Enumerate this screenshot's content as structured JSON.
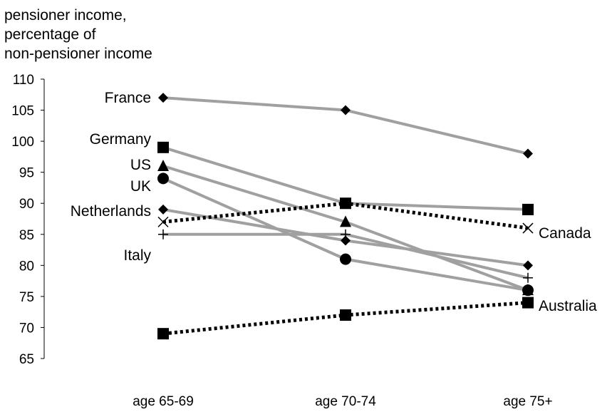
{
  "chart_data": {
    "type": "line",
    "ylabel_lines": [
      "pensioner income,",
      "percentage of",
      "non-pensioner income"
    ],
    "categories": [
      "age 65-69",
      "age 70-74",
      "age 75+"
    ],
    "ylim": [
      65,
      110
    ],
    "yticks": [
      65,
      70,
      75,
      80,
      85,
      90,
      95,
      100,
      105,
      110
    ],
    "grid": false,
    "series": [
      {
        "name": "France",
        "values": [
          107,
          105,
          98
        ],
        "marker": "diamond",
        "line_style": "solid",
        "color": "#a0a0a0"
      },
      {
        "name": "Germany",
        "values": [
          99,
          90,
          89
        ],
        "marker": "square",
        "line_style": "solid",
        "color": "#a0a0a0"
      },
      {
        "name": "US",
        "values": [
          96,
          87,
          76
        ],
        "marker": "triangle",
        "line_style": "solid",
        "color": "#a0a0a0"
      },
      {
        "name": "UK",
        "values": [
          94,
          81,
          76
        ],
        "marker": "circle",
        "line_style": "solid",
        "color": "#a0a0a0"
      },
      {
        "name": "Netherlands",
        "values": [
          89,
          84,
          80
        ],
        "marker": "diamond",
        "line_style": "solid",
        "color": "#a0a0a0"
      },
      {
        "name": "Italy",
        "values": [
          85,
          85,
          78
        ],
        "marker": "plus",
        "line_style": "solid",
        "color": "#a0a0a0"
      },
      {
        "name": "Canada",
        "values": [
          87,
          90,
          86
        ],
        "marker": "x",
        "line_style": "dotted",
        "color": "#000000"
      },
      {
        "name": "Australia",
        "values": [
          69,
          72,
          74
        ],
        "marker": "square",
        "line_style": "dotted",
        "color": "#000000"
      }
    ]
  }
}
